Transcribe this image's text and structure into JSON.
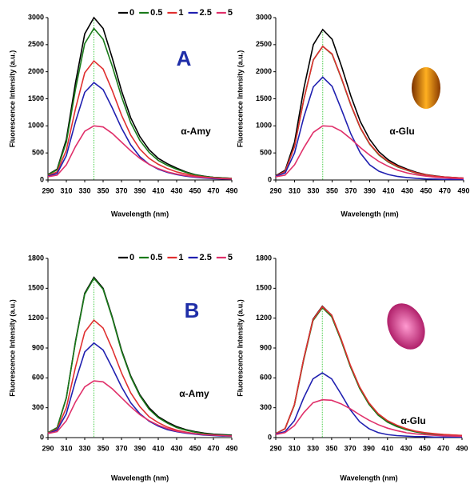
{
  "chart_data": [
    {
      "type": "line",
      "ylabel": "Fluorescence Intensity (a.u.)",
      "xlabel": "Wavelength (nm)",
      "annotations": [
        "A",
        "α-Amy"
      ],
      "vline": 340,
      "x": [
        290,
        300,
        310,
        320,
        330,
        340,
        350,
        360,
        370,
        380,
        390,
        400,
        410,
        420,
        430,
        440,
        450,
        460,
        470,
        480,
        490
      ],
      "xlim": [
        290,
        490
      ],
      "xticks": [
        290,
        310,
        330,
        350,
        370,
        390,
        410,
        430,
        450,
        470,
        490
      ],
      "ylim": [
        0,
        3000
      ],
      "yticks": [
        0,
        500,
        1000,
        1500,
        2000,
        2500,
        3000
      ],
      "series": [
        {
          "name": "0",
          "color": "#000000",
          "values": [
            100,
            200,
            750,
            1800,
            2700,
            3000,
            2800,
            2250,
            1650,
            1150,
            800,
            560,
            400,
            300,
            220,
            150,
            100,
            70,
            50,
            40,
            30
          ]
        },
        {
          "name": "0.5",
          "color": "#1a7a1a",
          "values": [
            95,
            190,
            700,
            1680,
            2520,
            2800,
            2600,
            2100,
            1540,
            1060,
            730,
            510,
            360,
            270,
            200,
            140,
            95,
            65,
            50,
            40,
            30
          ]
        },
        {
          "name": "1",
          "color": "#e03030",
          "values": [
            80,
            150,
            550,
            1320,
            1980,
            2200,
            2050,
            1650,
            1200,
            830,
            570,
            400,
            290,
            210,
            150,
            110,
            75,
            55,
            40,
            30,
            25
          ]
        },
        {
          "name": "2.5",
          "color": "#2020b0",
          "values": [
            70,
            120,
            450,
            1080,
            1620,
            1800,
            1670,
            1330,
            960,
            650,
            430,
            290,
            200,
            140,
            100,
            70,
            50,
            35,
            25,
            20,
            15
          ]
        },
        {
          "name": "5",
          "color": "#e0306a",
          "values": [
            60,
            90,
            280,
            620,
            900,
            1000,
            980,
            860,
            700,
            540,
            400,
            290,
            210,
            150,
            110,
            80,
            60,
            45,
            35,
            25,
            20
          ]
        }
      ]
    },
    {
      "type": "line",
      "ylabel": "Fluorescence Intensity (a.u.)",
      "xlabel": "Wavelength (nm)",
      "annotations": [
        "α-Glu"
      ],
      "vline": 340,
      "x": [
        290,
        300,
        310,
        320,
        330,
        340,
        350,
        360,
        370,
        380,
        390,
        400,
        410,
        420,
        430,
        440,
        450,
        460,
        470,
        480,
        490
      ],
      "xlim": [
        290,
        490
      ],
      "xticks": [
        290,
        310,
        330,
        350,
        370,
        390,
        410,
        430,
        450,
        470,
        490
      ],
      "ylim": [
        0,
        3000
      ],
      "yticks": [
        0,
        500,
        1000,
        1500,
        2000,
        2500,
        3000
      ],
      "series": [
        {
          "color": "#000000",
          "values": [
            80,
            180,
            700,
            1700,
            2500,
            2780,
            2600,
            2100,
            1550,
            1080,
            750,
            520,
            370,
            270,
            200,
            140,
            100,
            75,
            55,
            45,
            35
          ]
        },
        {
          "color": "#1a7a1a",
          "values": [
            75,
            160,
            620,
            1500,
            2220,
            2470,
            2320,
            1870,
            1380,
            960,
            660,
            460,
            330,
            240,
            180,
            125,
            90,
            65,
            50,
            40,
            30
          ]
        },
        {
          "color": "#e03030",
          "values": [
            75,
            160,
            620,
            1500,
            2220,
            2470,
            2330,
            1880,
            1390,
            970,
            670,
            470,
            340,
            250,
            185,
            130,
            95,
            70,
            55,
            45,
            35
          ]
        },
        {
          "color": "#2020b0",
          "values": [
            70,
            130,
            500,
            1170,
            1720,
            1900,
            1730,
            1300,
            850,
            500,
            280,
            160,
            100,
            65,
            45,
            30,
            20,
            15,
            10,
            10,
            10
          ]
        },
        {
          "color": "#e0306a",
          "values": [
            60,
            90,
            280,
            600,
            880,
            1000,
            990,
            900,
            760,
            600,
            460,
            340,
            250,
            180,
            130,
            95,
            70,
            50,
            40,
            30,
            25
          ]
        }
      ]
    },
    {
      "type": "line",
      "ylabel": "Fluorescence Intensity (a.u.)",
      "xlabel": "Wavelength (nm)",
      "annotations": [
        "B",
        "α-Amy"
      ],
      "vline": 340,
      "x": [
        290,
        300,
        310,
        320,
        330,
        340,
        350,
        360,
        370,
        380,
        390,
        400,
        410,
        420,
        430,
        440,
        450,
        460,
        470,
        480,
        490
      ],
      "xlim": [
        290,
        490
      ],
      "xticks": [
        290,
        310,
        330,
        350,
        370,
        390,
        410,
        430,
        450,
        470,
        490
      ],
      "ylim": [
        0,
        1800
      ],
      "yticks": [
        0,
        300,
        600,
        900,
        1200,
        1500,
        1800
      ],
      "series": [
        {
          "name": "0",
          "color": "#000000",
          "values": [
            50,
            100,
            400,
            970,
            1450,
            1610,
            1500,
            1210,
            880,
            620,
            430,
            300,
            210,
            155,
            110,
            80,
            60,
            45,
            35,
            30,
            25
          ]
        },
        {
          "name": "0.5",
          "color": "#1a7a1a",
          "values": [
            50,
            100,
            400,
            960,
            1440,
            1600,
            1490,
            1200,
            870,
            610,
            420,
            285,
            200,
            145,
            100,
            75,
            55,
            40,
            30,
            25,
            20
          ]
        },
        {
          "name": "1",
          "color": "#e03030",
          "values": [
            45,
            85,
            300,
            710,
            1060,
            1180,
            1100,
            890,
            650,
            450,
            310,
            210,
            150,
            105,
            75,
            55,
            40,
            30,
            25,
            20,
            15
          ]
        },
        {
          "name": "2.5",
          "color": "#2020b0",
          "values": [
            40,
            75,
            240,
            570,
            860,
            950,
            880,
            700,
            510,
            350,
            240,
            165,
            115,
            80,
            60,
            45,
            35,
            25,
            20,
            15,
            15
          ]
        },
        {
          "name": "5",
          "color": "#e0306a",
          "values": [
            40,
            60,
            170,
            360,
            510,
            570,
            560,
            490,
            400,
            310,
            230,
            170,
            125,
            90,
            65,
            50,
            40,
            30,
            25,
            20,
            15
          ]
        }
      ]
    },
    {
      "type": "line",
      "ylabel": "Fluorescence Intensity (a.u.)",
      "xlabel": "Wavelength (nm)",
      "annotations": [
        "α-Glu"
      ],
      "vline": 340,
      "x": [
        290,
        300,
        310,
        320,
        330,
        340,
        350,
        360,
        370,
        380,
        390,
        400,
        410,
        420,
        430,
        440,
        450,
        460,
        470,
        480,
        490
      ],
      "xlim": [
        290,
        490
      ],
      "xticks": [
        290,
        310,
        330,
        350,
        370,
        390,
        410,
        430,
        450,
        470,
        490
      ],
      "ylim": [
        0,
        1800
      ],
      "yticks": [
        0,
        300,
        600,
        900,
        1200,
        1500,
        1800
      ],
      "series": [
        {
          "color": "#000000",
          "values": [
            40,
            90,
            330,
            790,
            1190,
            1320,
            1230,
            990,
            720,
            500,
            340,
            230,
            160,
            115,
            85,
            60,
            45,
            35,
            30,
            25,
            20
          ]
        },
        {
          "color": "#1a7a1a",
          "values": [
            40,
            90,
            325,
            780,
            1175,
            1305,
            1215,
            980,
            715,
            495,
            335,
            225,
            155,
            110,
            80,
            58,
            43,
            33,
            28,
            23,
            18
          ]
        },
        {
          "color": "#e03030",
          "values": [
            40,
            90,
            330,
            790,
            1185,
            1315,
            1230,
            995,
            730,
            510,
            350,
            240,
            170,
            125,
            90,
            65,
            50,
            40,
            32,
            27,
            22
          ]
        },
        {
          "color": "#2020b0",
          "values": [
            35,
            60,
            170,
            400,
            590,
            650,
            590,
            440,
            280,
            160,
            90,
            50,
            30,
            20,
            15,
            10,
            10,
            5,
            5,
            5,
            5
          ]
        },
        {
          "color": "#e0306a",
          "values": [
            30,
            50,
            120,
            250,
            350,
            380,
            375,
            340,
            290,
            230,
            175,
            130,
            95,
            70,
            50,
            38,
            30,
            23,
            18,
            15,
            12
          ]
        }
      ]
    }
  ]
}
